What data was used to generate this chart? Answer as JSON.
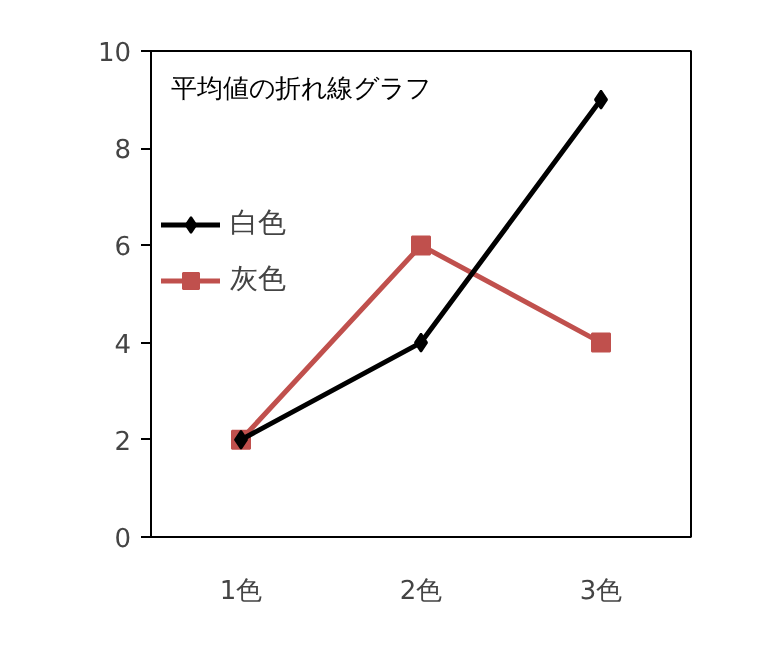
{
  "chart_data": {
    "type": "line",
    "title": "平均値の折れ線グラフ",
    "categories": [
      "1色",
      "2色",
      "3色"
    ],
    "series": [
      {
        "name": "白色",
        "color": "#000000",
        "values": [
          2,
          4,
          9
        ],
        "marker": "diamond"
      },
      {
        "name": "灰色",
        "color": "#c0504d",
        "values": [
          2,
          6,
          4
        ],
        "marker": "square"
      }
    ],
    "ylim": [
      0,
      10
    ],
    "yticks": [
      0,
      2,
      4,
      6,
      8,
      10
    ],
    "grid": false,
    "legend": "top left",
    "line_style": "solid"
  }
}
